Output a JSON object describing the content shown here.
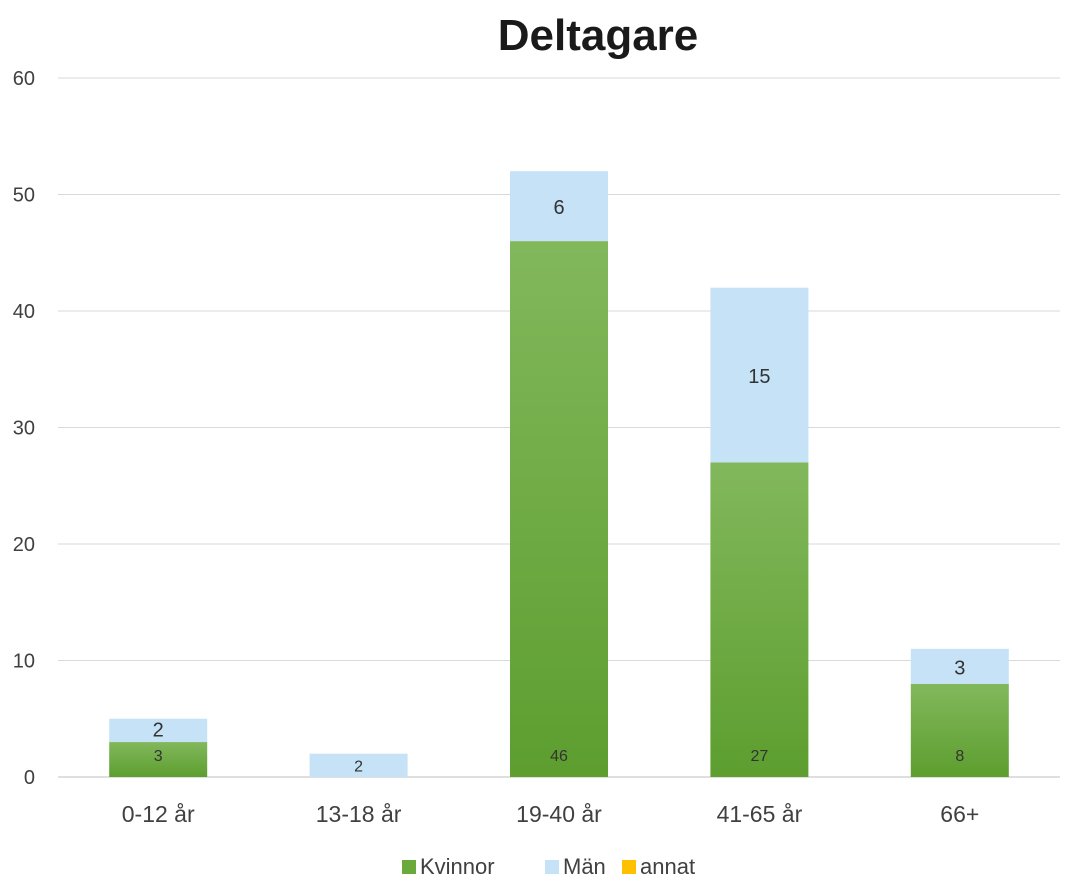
{
  "chart_data": {
    "type": "bar",
    "stacked": true,
    "title": "Deltagare",
    "xlabel": "",
    "ylabel": "",
    "categories": [
      "0-12 år",
      "13-18 år",
      "19-40 år",
      "41-65 år",
      "66+"
    ],
    "series": [
      {
        "name": "Kvinnor",
        "values": [
          3,
          0,
          46,
          27,
          8
        ],
        "color": "#6aaa3a"
      },
      {
        "name": "Män",
        "values": [
          2,
          2,
          6,
          15,
          3
        ],
        "color": "#c6e2f6"
      },
      {
        "name": "annat",
        "values": [
          0,
          0,
          0,
          0,
          0
        ],
        "color": "#ffc000"
      }
    ],
    "ylim": [
      0,
      60
    ],
    "yticks": [
      0,
      10,
      20,
      30,
      40,
      50,
      60
    ],
    "grid": true,
    "legend": "bottom-center"
  }
}
